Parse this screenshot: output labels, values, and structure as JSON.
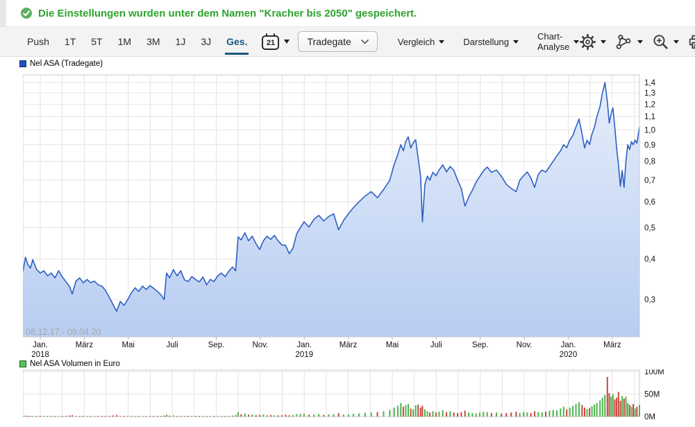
{
  "message": {
    "text": "Die Einstellungen wurden unter dem Namen \"Kracher bis 2050\" gespeichert.",
    "icon": "check-circle-icon"
  },
  "toolbar": {
    "ranges": [
      "Push",
      "1T",
      "5T",
      "1M",
      "3M",
      "1J",
      "3J",
      "Ges."
    ],
    "active_range": "Ges.",
    "calendar_day": "21",
    "exchange": "Tradegate",
    "menus": [
      "Vergleich",
      "Darstellung",
      "Chart-Analyse"
    ],
    "icon_buttons": [
      {
        "name": "settings",
        "icon": "gear-icon",
        "caret": true
      },
      {
        "name": "indicators",
        "icon": "nodes-icon",
        "caret": true
      },
      {
        "name": "zoom",
        "icon": "magnifier-plus-icon",
        "caret": true
      },
      {
        "name": "print",
        "icon": "printer-icon",
        "caret": false
      },
      {
        "name": "save",
        "icon": "floppy-icon",
        "caret": true
      }
    ]
  },
  "colors": {
    "accent_green": "#2da32d",
    "active_tab": "#17597f",
    "price_line": "#2d5fc2",
    "area_top": "#e3ecfb",
    "area_bottom": "#b3c9f0",
    "volume_up": "#4bb44b",
    "volume_down": "#c8463c",
    "grid": "#e4e4e4",
    "frame": "#c9c9c9",
    "date_range_text": "#a7a7a7"
  },
  "chart_data": [
    {
      "type": "area",
      "title": "Nel ASA (Tradegate)",
      "y_scale": "log",
      "ylim": [
        0.26,
        1.45
      ],
      "y_ticks": [
        1.4,
        1.3,
        1.2,
        1.1,
        1.0,
        0.9,
        0.8,
        0.7,
        0.6,
        0.5,
        0.4,
        0.3
      ],
      "y_tick_labels": [
        "1,4",
        "1,3",
        "1,2",
        "1,1",
        "1,0",
        "0,9",
        "0,8",
        "0,7",
        "0,6",
        "0,5",
        "0,4",
        "0,3"
      ],
      "x_ticks": [
        {
          "i": 0,
          "label": "Jan.",
          "year": "2018"
        },
        {
          "i": 2,
          "label": "März"
        },
        {
          "i": 4,
          "label": "Mai"
        },
        {
          "i": 6,
          "label": "Juli"
        },
        {
          "i": 8,
          "label": "Sep."
        },
        {
          "i": 10,
          "label": "Nov."
        },
        {
          "i": 12,
          "label": "Jan.",
          "year": "2019"
        },
        {
          "i": 14,
          "label": "März"
        },
        {
          "i": 16,
          "label": "Mai"
        },
        {
          "i": 18,
          "label": "Juli"
        },
        {
          "i": 20,
          "label": "Sep."
        },
        {
          "i": 22,
          "label": "Nov."
        },
        {
          "i": 24,
          "label": "Jan.",
          "year": "2020"
        },
        {
          "i": 26,
          "label": "März"
        }
      ],
      "months_total": 28,
      "date_range_label": "08.12.17 - 09.04.20",
      "points_format": [
        "x_fraction",
        "price_eur",
        "volume_m_eur"
      ],
      "points": [
        [
          0.0,
          0.365,
          1.0
        ],
        [
          0.004,
          0.405,
          2.2
        ],
        [
          0.008,
          0.385,
          1.1
        ],
        [
          0.012,
          0.375,
          0.8
        ],
        [
          0.016,
          0.398,
          1.6
        ],
        [
          0.022,
          0.372,
          1.2
        ],
        [
          0.028,
          0.362,
          0.9
        ],
        [
          0.034,
          0.368,
          1.3
        ],
        [
          0.04,
          0.355,
          0.7
        ],
        [
          0.046,
          0.362,
          1.1
        ],
        [
          0.052,
          0.35,
          0.9
        ],
        [
          0.058,
          0.368,
          1.4
        ],
        [
          0.064,
          0.352,
          1.0
        ],
        [
          0.07,
          0.34,
          1.8
        ],
        [
          0.076,
          0.328,
          2.4
        ],
        [
          0.08,
          0.312,
          2.9
        ],
        [
          0.086,
          0.342,
          1.5
        ],
        [
          0.092,
          0.35,
          1.1
        ],
        [
          0.098,
          0.338,
          0.9
        ],
        [
          0.104,
          0.346,
          1.2
        ],
        [
          0.11,
          0.338,
          0.8
        ],
        [
          0.116,
          0.342,
          1.0
        ],
        [
          0.122,
          0.333,
          0.7
        ],
        [
          0.128,
          0.33,
          0.9
        ],
        [
          0.134,
          0.32,
          1.3
        ],
        [
          0.14,
          0.305,
          1.9
        ],
        [
          0.146,
          0.29,
          2.6
        ],
        [
          0.152,
          0.276,
          3.1
        ],
        [
          0.158,
          0.296,
          1.7
        ],
        [
          0.164,
          0.288,
          1.2
        ],
        [
          0.17,
          0.3,
          1.4
        ],
        [
          0.176,
          0.315,
          1.8
        ],
        [
          0.182,
          0.326,
          1.3
        ],
        [
          0.188,
          0.318,
          0.9
        ],
        [
          0.194,
          0.33,
          1.1
        ],
        [
          0.2,
          0.322,
          0.8
        ],
        [
          0.206,
          0.331,
          1.0
        ],
        [
          0.212,
          0.325,
          0.9
        ],
        [
          0.218,
          0.318,
          1.2
        ],
        [
          0.224,
          0.31,
          1.6
        ],
        [
          0.229,
          0.3,
          2.1
        ],
        [
          0.233,
          0.362,
          4.5
        ],
        [
          0.238,
          0.35,
          2.2
        ],
        [
          0.244,
          0.371,
          2.8
        ],
        [
          0.25,
          0.355,
          1.6
        ],
        [
          0.256,
          0.368,
          1.9
        ],
        [
          0.262,
          0.345,
          1.4
        ],
        [
          0.268,
          0.341,
          1.1
        ],
        [
          0.274,
          0.353,
          1.3
        ],
        [
          0.28,
          0.346,
          1.0
        ],
        [
          0.286,
          0.34,
          0.9
        ],
        [
          0.292,
          0.352,
          1.2
        ],
        [
          0.298,
          0.333,
          1.5
        ],
        [
          0.304,
          0.346,
          1.1
        ],
        [
          0.31,
          0.341,
          0.9
        ],
        [
          0.316,
          0.355,
          1.3
        ],
        [
          0.322,
          0.362,
          1.6
        ],
        [
          0.328,
          0.353,
          1.2
        ],
        [
          0.334,
          0.367,
          1.8
        ],
        [
          0.34,
          0.378,
          2.5
        ],
        [
          0.345,
          0.368,
          3.0
        ],
        [
          0.349,
          0.468,
          9.5
        ],
        [
          0.354,
          0.458,
          5.2
        ],
        [
          0.36,
          0.482,
          6.8
        ],
        [
          0.366,
          0.455,
          4.1
        ],
        [
          0.372,
          0.47,
          4.6
        ],
        [
          0.378,
          0.446,
          3.2
        ],
        [
          0.384,
          0.428,
          3.8
        ],
        [
          0.39,
          0.455,
          4.4
        ],
        [
          0.396,
          0.47,
          3.1
        ],
        [
          0.402,
          0.46,
          3.6
        ],
        [
          0.408,
          0.473,
          2.9
        ],
        [
          0.414,
          0.455,
          2.6
        ],
        [
          0.42,
          0.442,
          3.3
        ],
        [
          0.426,
          0.441,
          4.2
        ],
        [
          0.432,
          0.415,
          3.0
        ],
        [
          0.438,
          0.432,
          3.4
        ],
        [
          0.444,
          0.478,
          5.5
        ],
        [
          0.45,
          0.5,
          6.0
        ],
        [
          0.456,
          0.521,
          6.5
        ],
        [
          0.464,
          0.502,
          4.2
        ],
        [
          0.472,
          0.53,
          5.1
        ],
        [
          0.48,
          0.545,
          5.8
        ],
        [
          0.488,
          0.524,
          4.0
        ],
        [
          0.496,
          0.541,
          4.6
        ],
        [
          0.504,
          0.551,
          5.2
        ],
        [
          0.512,
          0.492,
          7.5
        ],
        [
          0.52,
          0.526,
          4.4
        ],
        [
          0.528,
          0.552,
          5.0
        ],
        [
          0.536,
          0.576,
          6.2
        ],
        [
          0.545,
          0.6,
          7.0
        ],
        [
          0.555,
          0.625,
          8.5
        ],
        [
          0.565,
          0.645,
          9.0
        ],
        [
          0.575,
          0.618,
          10
        ],
        [
          0.585,
          0.655,
          12
        ],
        [
          0.595,
          0.7,
          15
        ],
        [
          0.602,
          0.78,
          20
        ],
        [
          0.608,
          0.84,
          24
        ],
        [
          0.613,
          0.9,
          30
        ],
        [
          0.617,
          0.862,
          22
        ],
        [
          0.621,
          0.92,
          26
        ],
        [
          0.625,
          0.952,
          28
        ],
        [
          0.629,
          0.88,
          18
        ],
        [
          0.633,
          0.912,
          16
        ],
        [
          0.637,
          0.932,
          25
        ],
        [
          0.641,
          0.82,
          27
        ],
        [
          0.645,
          0.72,
          20
        ],
        [
          0.648,
          0.52,
          24
        ],
        [
          0.652,
          0.68,
          16
        ],
        [
          0.656,
          0.72,
          12
        ],
        [
          0.66,
          0.7,
          9
        ],
        [
          0.665,
          0.74,
          12
        ],
        [
          0.67,
          0.722,
          9
        ],
        [
          0.675,
          0.752,
          11
        ],
        [
          0.681,
          0.78,
          14
        ],
        [
          0.687,
          0.742,
          10
        ],
        [
          0.693,
          0.772,
          12
        ],
        [
          0.699,
          0.75,
          9
        ],
        [
          0.705,
          0.7,
          8
        ],
        [
          0.711,
          0.66,
          10
        ],
        [
          0.717,
          0.582,
          13
        ],
        [
          0.723,
          0.62,
          9
        ],
        [
          0.729,
          0.652,
          8
        ],
        [
          0.735,
          0.69,
          7
        ],
        [
          0.741,
          0.718,
          9
        ],
        [
          0.747,
          0.748,
          11
        ],
        [
          0.753,
          0.768,
          10
        ],
        [
          0.76,
          0.74,
          8
        ],
        [
          0.768,
          0.752,
          9
        ],
        [
          0.776,
          0.72,
          7
        ],
        [
          0.784,
          0.68,
          8
        ],
        [
          0.792,
          0.66,
          9
        ],
        [
          0.8,
          0.645,
          11
        ],
        [
          0.806,
          0.7,
          8
        ],
        [
          0.812,
          0.722,
          10
        ],
        [
          0.818,
          0.742,
          9
        ],
        [
          0.824,
          0.71,
          8
        ],
        [
          0.83,
          0.665,
          12
        ],
        [
          0.836,
          0.73,
          10
        ],
        [
          0.842,
          0.752,
          9
        ],
        [
          0.848,
          0.741,
          11
        ],
        [
          0.854,
          0.77,
          13
        ],
        [
          0.86,
          0.8,
          15
        ],
        [
          0.866,
          0.832,
          14
        ],
        [
          0.872,
          0.862,
          18
        ],
        [
          0.877,
          0.9,
          22
        ],
        [
          0.882,
          0.881,
          16
        ],
        [
          0.887,
          0.93,
          20
        ],
        [
          0.892,
          0.962,
          24
        ],
        [
          0.897,
          1.02,
          28
        ],
        [
          0.902,
          1.08,
          32
        ],
        [
          0.907,
          0.97,
          26
        ],
        [
          0.911,
          0.88,
          20
        ],
        [
          0.915,
          0.93,
          17
        ],
        [
          0.919,
          0.902,
          19
        ],
        [
          0.923,
          0.97,
          23
        ],
        [
          0.927,
          1.02,
          27
        ],
        [
          0.931,
          1.1,
          30
        ],
        [
          0.936,
          1.18,
          36
        ],
        [
          0.94,
          1.3,
          42
        ],
        [
          0.944,
          1.4,
          48
        ],
        [
          0.948,
          1.22,
          88
        ],
        [
          0.951,
          1.05,
          52
        ],
        [
          0.954,
          1.12,
          44
        ],
        [
          0.957,
          1.17,
          50
        ],
        [
          0.96,
          1.02,
          38
        ],
        [
          0.963,
          0.88,
          42
        ],
        [
          0.966,
          0.78,
          55
        ],
        [
          0.969,
          0.67,
          35
        ],
        [
          0.972,
          0.75,
          46
        ],
        [
          0.975,
          0.665,
          40
        ],
        [
          0.978,
          0.8,
          44
        ],
        [
          0.981,
          0.9,
          30
        ],
        [
          0.984,
          0.87,
          26
        ],
        [
          0.987,
          0.92,
          22
        ],
        [
          0.99,
          0.9,
          28
        ],
        [
          0.993,
          0.93,
          18
        ],
        [
          0.996,
          0.91,
          22
        ],
        [
          1.0,
          1.02,
          26
        ]
      ]
    },
    {
      "type": "bar",
      "title": "Nel ASA Volumen in Euro",
      "y_ticks": [
        "100M",
        "50M",
        "0M"
      ],
      "y_tick_values": [
        100,
        50,
        0
      ],
      "note": "bar x positions and heights come from chart_data[0].points (x_fraction, volume_m_eur); bar color = green if price rose vs previous point, red if it fell"
    }
  ]
}
